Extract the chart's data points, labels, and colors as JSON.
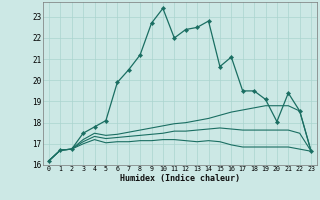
{
  "xlabel": "Humidex (Indice chaleur)",
  "bg_color": "#cce8e5",
  "grid_color": "#aad4cf",
  "line_color": "#1a6e62",
  "xlim": [
    -0.5,
    23.5
  ],
  "ylim": [
    16.0,
    23.7
  ],
  "yticks": [
    16,
    17,
    18,
    19,
    20,
    21,
    22,
    23
  ],
  "xticks": [
    0,
    1,
    2,
    3,
    4,
    5,
    6,
    7,
    8,
    9,
    10,
    11,
    12,
    13,
    14,
    15,
    16,
    17,
    18,
    19,
    20,
    21,
    22,
    23
  ],
  "line1_x": [
    0,
    1,
    2,
    3,
    4,
    5,
    6,
    7,
    8,
    9,
    10,
    11,
    12,
    13,
    14,
    15,
    16,
    17,
    18,
    19,
    20,
    21,
    22,
    23
  ],
  "line1_y": [
    16.2,
    16.7,
    16.75,
    17.5,
    17.8,
    18.1,
    19.9,
    20.5,
    21.2,
    22.7,
    23.4,
    22.0,
    22.4,
    22.5,
    22.8,
    20.65,
    21.1,
    19.5,
    19.5,
    19.1,
    18.05,
    19.4,
    18.55,
    16.65
  ],
  "line2_x": [
    0,
    1,
    2,
    3,
    4,
    5,
    6,
    7,
    8,
    9,
    10,
    11,
    12,
    13,
    14,
    15,
    16,
    17,
    18,
    19,
    20,
    21,
    22,
    23
  ],
  "line2_y": [
    16.2,
    16.7,
    16.75,
    17.2,
    17.5,
    17.4,
    17.45,
    17.55,
    17.65,
    17.75,
    17.85,
    17.95,
    18.0,
    18.1,
    18.2,
    18.35,
    18.5,
    18.6,
    18.7,
    18.8,
    18.8,
    18.8,
    18.55,
    16.65
  ],
  "line3_x": [
    0,
    1,
    2,
    3,
    4,
    5,
    6,
    7,
    8,
    9,
    10,
    11,
    12,
    13,
    14,
    15,
    16,
    17,
    18,
    19,
    20,
    21,
    22,
    23
  ],
  "line3_y": [
    16.2,
    16.7,
    16.75,
    17.1,
    17.35,
    17.25,
    17.3,
    17.35,
    17.4,
    17.45,
    17.5,
    17.6,
    17.6,
    17.65,
    17.7,
    17.75,
    17.7,
    17.65,
    17.65,
    17.65,
    17.65,
    17.65,
    17.5,
    16.65
  ],
  "line4_x": [
    0,
    1,
    2,
    3,
    4,
    5,
    6,
    7,
    8,
    9,
    10,
    11,
    12,
    13,
    14,
    15,
    16,
    17,
    18,
    19,
    20,
    21,
    22,
    23
  ],
  "line4_y": [
    16.2,
    16.7,
    16.75,
    17.0,
    17.2,
    17.05,
    17.1,
    17.1,
    17.15,
    17.15,
    17.2,
    17.2,
    17.15,
    17.1,
    17.15,
    17.1,
    16.95,
    16.85,
    16.85,
    16.85,
    16.85,
    16.85,
    16.75,
    16.65
  ]
}
